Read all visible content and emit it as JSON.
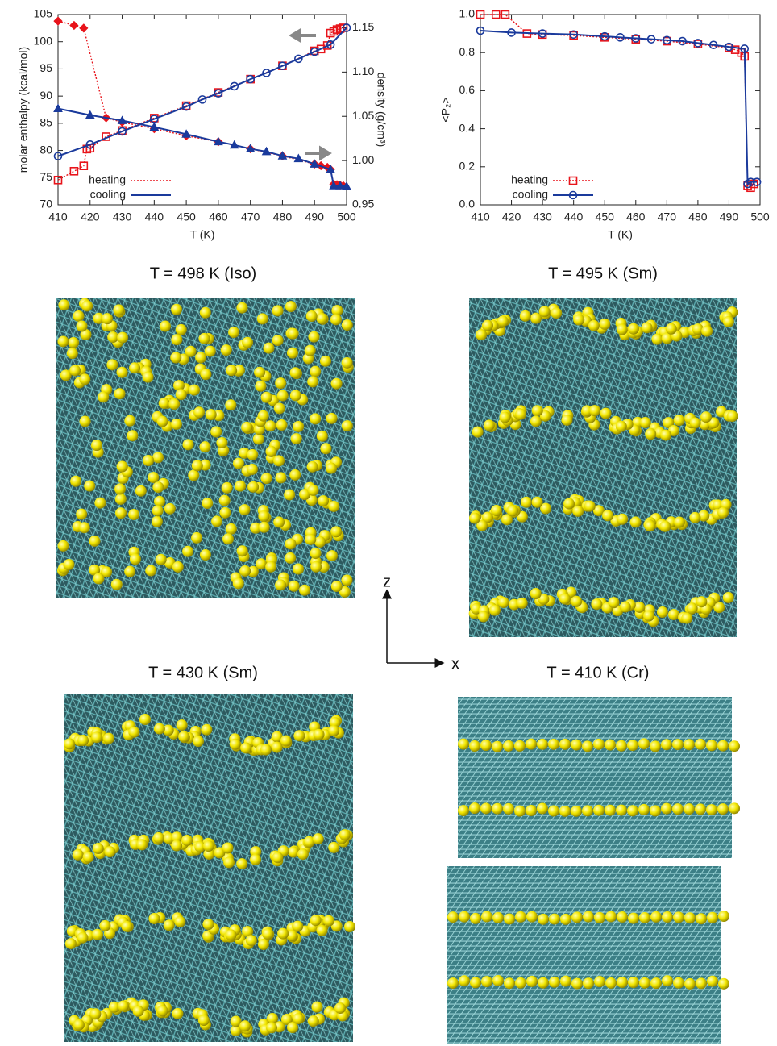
{
  "chart_data": [
    {
      "type": "line",
      "xlabel": "T (K)",
      "ylabel": "molar enthalpy (kcal/mol)",
      "y2label": "density (g/cm³)",
      "xlim": [
        410,
        500
      ],
      "xticks": [
        410,
        420,
        430,
        440,
        450,
        460,
        470,
        480,
        490,
        500
      ],
      "ylim": [
        70,
        105
      ],
      "yticks": [
        70,
        75,
        80,
        85,
        90,
        95,
        100,
        105
      ],
      "y2lim": [
        0.95,
        1.165
      ],
      "y2ticks": [
        0.95,
        {
          "value": 1,
          "label": "1.00"
        },
        1.05,
        {
          "value": 1.1,
          "label": "1.10"
        },
        1.15
      ],
      "legend": "bottom-left",
      "legend_markers": false,
      "series": [
        {
          "name": "heating",
          "color": "#e8141b",
          "line_style": "dotted",
          "marker": "diamond",
          "x": [
            410,
            415,
            418,
            425,
            430,
            440,
            450,
            460,
            470,
            480,
            490,
            492,
            494,
            495,
            496,
            497,
            498,
            499
          ],
          "values": [
            103.8,
            103.0,
            102.5,
            86.0,
            85.2,
            84.0,
            82.7,
            81.6,
            80.3,
            79.0,
            77.5,
            77.2,
            76.9,
            76.5,
            73.8,
            73.7,
            73.6,
            73.5
          ]
        },
        {
          "name": "cooling",
          "color": "#1a3a9c",
          "line_style": "solid",
          "marker": "triangle",
          "x": [
            410,
            420,
            430,
            440,
            450,
            460,
            465,
            470,
            475,
            480,
            485,
            490,
            495,
            496,
            498,
            500
          ],
          "values": [
            87.7,
            86.5,
            85.5,
            84.3,
            83.0,
            81.6,
            81.0,
            80.3,
            79.8,
            79.0,
            78.5,
            77.5,
            76.5,
            73.5,
            73.5,
            73.4
          ]
        },
        {
          "color": "#e8141b",
          "line_style": "dotted",
          "marker": "open-square",
          "axis": "y2",
          "x": [
            410,
            415,
            418,
            419,
            420,
            425,
            430,
            440,
            450,
            460,
            470,
            480,
            490,
            492,
            494,
            495,
            496,
            497,
            498,
            499
          ],
          "values": [
            0.978,
            0.988,
            0.994,
            1.013,
            1.014,
            1.027,
            1.034,
            1.048,
            1.062,
            1.077,
            1.092,
            1.107,
            1.124,
            1.126,
            1.13,
            1.144,
            1.146,
            1.148,
            1.149,
            1.15
          ]
        },
        {
          "color": "#1a3a9c",
          "line_style": "solid",
          "marker": "open-circle",
          "axis": "y2",
          "x": [
            410,
            420,
            430,
            440,
            450,
            455,
            460,
            465,
            470,
            475,
            480,
            485,
            490,
            495,
            500
          ],
          "values": [
            1.005,
            1.018,
            1.033,
            1.047,
            1.061,
            1.069,
            1.076,
            1.084,
            1.092,
            1.099,
            1.107,
            1.115,
            1.123,
            1.131,
            1.15
          ]
        }
      ]
    },
    {
      "type": "line",
      "xlabel": "T (K)",
      "ylabel": "<P₂>",
      "xlim": [
        410,
        500
      ],
      "xticks": [
        410,
        420,
        430,
        440,
        450,
        460,
        470,
        480,
        490,
        500
      ],
      "ylim": [
        0,
        1
      ],
      "yticks": [
        {
          "value": 0,
          "label": "0.0"
        },
        0.2,
        0.4,
        0.6,
        0.8,
        {
          "value": 1,
          "label": "1.0"
        }
      ],
      "legend": "bottom-left",
      "legend_markers": true,
      "series": [
        {
          "name": "heating",
          "color": "#e8141b",
          "line_style": "dotted",
          "marker": "open-square",
          "x": [
            410,
            415,
            418,
            425,
            430,
            440,
            450,
            460,
            470,
            480,
            490,
            492,
            494,
            495,
            496,
            497,
            498
          ],
          "values": [
            1.0,
            1.0,
            1.0,
            0.9,
            0.895,
            0.89,
            0.88,
            0.87,
            0.86,
            0.845,
            0.825,
            0.815,
            0.8,
            0.78,
            0.1,
            0.09,
            0.11
          ]
        },
        {
          "name": "cooling",
          "color": "#1a3a9c",
          "line_style": "solid",
          "marker": "open-circle",
          "x": [
            410,
            420,
            430,
            440,
            450,
            455,
            460,
            465,
            470,
            475,
            480,
            485,
            490,
            495,
            496,
            497,
            499
          ],
          "values": [
            0.915,
            0.905,
            0.9,
            0.895,
            0.885,
            0.88,
            0.875,
            0.87,
            0.865,
            0.86,
            0.85,
            0.84,
            0.83,
            0.82,
            0.11,
            0.12,
            0.12
          ]
        }
      ]
    }
  ],
  "panels": [
    {
      "title": "T = 498 K  (Iso)"
    },
    {
      "title": "T = 495 K  (Sm)"
    },
    {
      "title": "T = 430 K  (Sm)"
    },
    {
      "title": "T = 410 K   (Cr)"
    }
  ],
  "axes_diagram": {
    "z": "z",
    "x": "x"
  }
}
